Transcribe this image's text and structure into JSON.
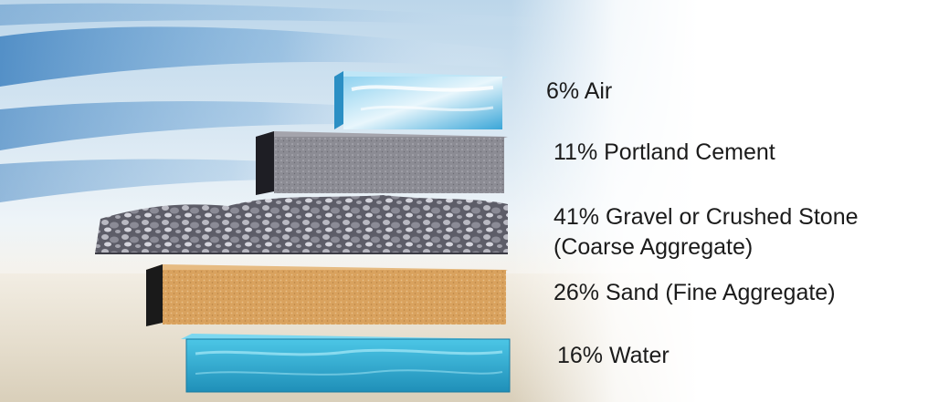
{
  "layers": [
    {
      "id": "air",
      "label": "6% Air"
    },
    {
      "id": "cement",
      "label": "11% Portland Cement"
    },
    {
      "id": "gravel",
      "label": "41% Gravel or Crushed Stone",
      "sublabel": "(Coarse Aggregate)"
    },
    {
      "id": "sand",
      "label": "26% Sand (Fine Aggregate)"
    },
    {
      "id": "water",
      "label": "16% Water"
    }
  ],
  "colors": {
    "air": "#56b6e2",
    "cement": "#8a8a92",
    "gravel": "#6b6b76",
    "sand": "#d9a25e",
    "water": "#2fb0d2",
    "text": "#1b1b1b"
  }
}
